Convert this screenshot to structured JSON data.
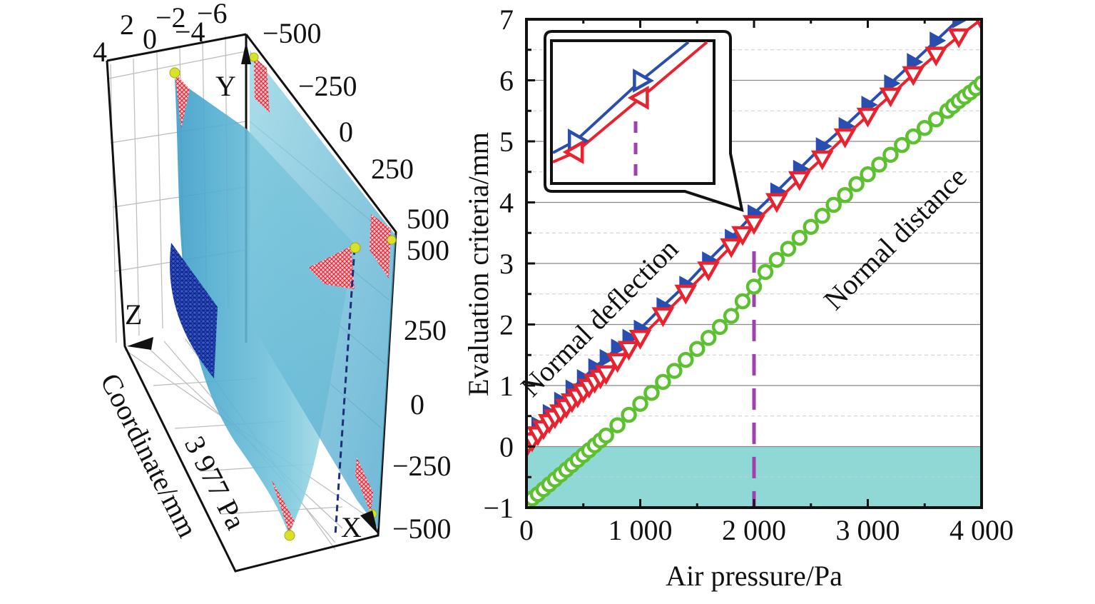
{
  "left_panel": {
    "type": "3d-surface",
    "axis_labels": {
      "x": "X",
      "y": "Y",
      "z": "Z"
    },
    "top_axis_ticks": [
      "4",
      "2",
      "0",
      "−2",
      "−4",
      "−6"
    ],
    "y_axis_ticks": [
      "−500",
      "−250",
      "0",
      "250",
      "500"
    ],
    "x_axis_ticks": [
      "500",
      "250",
      "0",
      "−250",
      "−500"
    ],
    "vertical_label": "Coordinate/mm",
    "pressure_label": "3 977 Pa",
    "colors": {
      "surface": "#5fb8d6",
      "mesh_red": "#e0283a",
      "mesh_blue": "#1a3aa8",
      "marker": "#d8e22a",
      "dashed": "#1f2f7a"
    }
  },
  "chart_data": {
    "type": "line",
    "title": "",
    "xlabel": "Air pressure/Pa",
    "ylabel": "Evaluation criteria/mm",
    "xlim": [
      0,
      4000
    ],
    "ylim": [
      -1,
      7
    ],
    "xticks": [
      0,
      1000,
      2000,
      3000,
      4000
    ],
    "xtick_labels": [
      "0",
      "1 000",
      "2 000",
      "3 000",
      "4 000"
    ],
    "yticks": [
      -1,
      0,
      1,
      2,
      3,
      4,
      5,
      6,
      7
    ],
    "ytick_labels": [
      "−1",
      "0",
      "1",
      "2",
      "3",
      "4",
      "5",
      "6",
      "7"
    ],
    "grid": true,
    "shaded_region": {
      "y_from": -1,
      "y_to": 0,
      "color": "#8fd8d6"
    },
    "reference_line": {
      "x": 2000,
      "color": "#a040b0",
      "style": "dashed"
    },
    "annotations": [
      {
        "text": "Normal deflection",
        "x": 700,
        "y": 2.0,
        "angle": -45
      },
      {
        "text": "Normal distance",
        "x": 3300,
        "y": 3.3,
        "angle": -45
      }
    ],
    "series": [
      {
        "name": "Normal deflection (blue)",
        "marker": "triangle-right",
        "color": "#2a4db0",
        "x": [
          0,
          100,
          200,
          300,
          400,
          500,
          600,
          700,
          800,
          900,
          1000,
          1200,
          1400,
          1600,
          1800,
          2000,
          2200,
          2400,
          2600,
          2800,
          3000,
          3200,
          3400,
          3600,
          3800,
          4000
        ],
        "y": [
          0.15,
          0.35,
          0.55,
          0.75,
          0.95,
          1.12,
          1.3,
          1.45,
          1.62,
          1.78,
          1.93,
          2.3,
          2.65,
          3.05,
          3.42,
          3.82,
          4.18,
          4.55,
          4.92,
          5.25,
          5.6,
          5.95,
          6.3,
          6.65,
          7.0,
          7.3
        ]
      },
      {
        "name": "Normal deflection (red)",
        "marker": "triangle-down",
        "color": "#e8222e",
        "x": [
          0,
          50,
          100,
          150,
          200,
          250,
          300,
          350,
          400,
          450,
          500,
          550,
          600,
          650,
          700,
          800,
          900,
          1000,
          1200,
          1400,
          1600,
          1800,
          1900,
          2000,
          2200,
          2400,
          2600,
          2800,
          3000,
          3200,
          3400,
          3600,
          3800,
          4000
        ],
        "y": [
          0.0,
          0.1,
          0.2,
          0.3,
          0.4,
          0.48,
          0.56,
          0.65,
          0.74,
          0.82,
          0.9,
          0.98,
          1.06,
          1.13,
          1.2,
          1.4,
          1.6,
          1.78,
          2.15,
          2.52,
          2.9,
          3.28,
          3.48,
          3.66,
          4.02,
          4.38,
          4.72,
          5.08,
          5.42,
          5.75,
          6.1,
          6.42,
          6.72,
          7.0
        ]
      },
      {
        "name": "Normal distance",
        "marker": "circle-open",
        "color": "#5cc030",
        "x": [
          0,
          50,
          100,
          150,
          200,
          250,
          300,
          350,
          400,
          450,
          500,
          550,
          600,
          650,
          700,
          800,
          900,
          1000,
          1100,
          1200,
          1300,
          1400,
          1500,
          1600,
          1700,
          1800,
          1900,
          2000,
          2100,
          2200,
          2300,
          2400,
          2500,
          2600,
          2700,
          2800,
          2900,
          3000,
          3100,
          3200,
          3300,
          3400,
          3500,
          3600,
          3700,
          3750,
          3800,
          3850,
          3900,
          3950,
          4000
        ],
        "y": [
          -0.92,
          -0.85,
          -0.78,
          -0.7,
          -0.62,
          -0.54,
          -0.46,
          -0.38,
          -0.3,
          -0.22,
          -0.14,
          -0.06,
          0.02,
          0.1,
          0.18,
          0.35,
          0.52,
          0.7,
          0.88,
          1.06,
          1.24,
          1.42,
          1.6,
          1.78,
          1.96,
          2.14,
          2.38,
          2.62,
          2.86,
          3.06,
          3.24,
          3.42,
          3.6,
          3.78,
          3.96,
          4.12,
          4.3,
          4.46,
          4.62,
          4.78,
          4.94,
          5.08,
          5.22,
          5.36,
          5.5,
          5.58,
          5.66,
          5.73,
          5.8,
          5.87,
          5.95
        ]
      }
    ],
    "inset": {
      "description": "zoom of curves near x=2000",
      "blue_points": [
        {
          "x": 0.15,
          "y": 0.3
        },
        {
          "x": 0.55,
          "y": 0.72
        }
      ],
      "red_points": [
        {
          "x": 0.15,
          "y": 0.22
        },
        {
          "x": 0.55,
          "y": 0.6
        }
      ]
    }
  }
}
